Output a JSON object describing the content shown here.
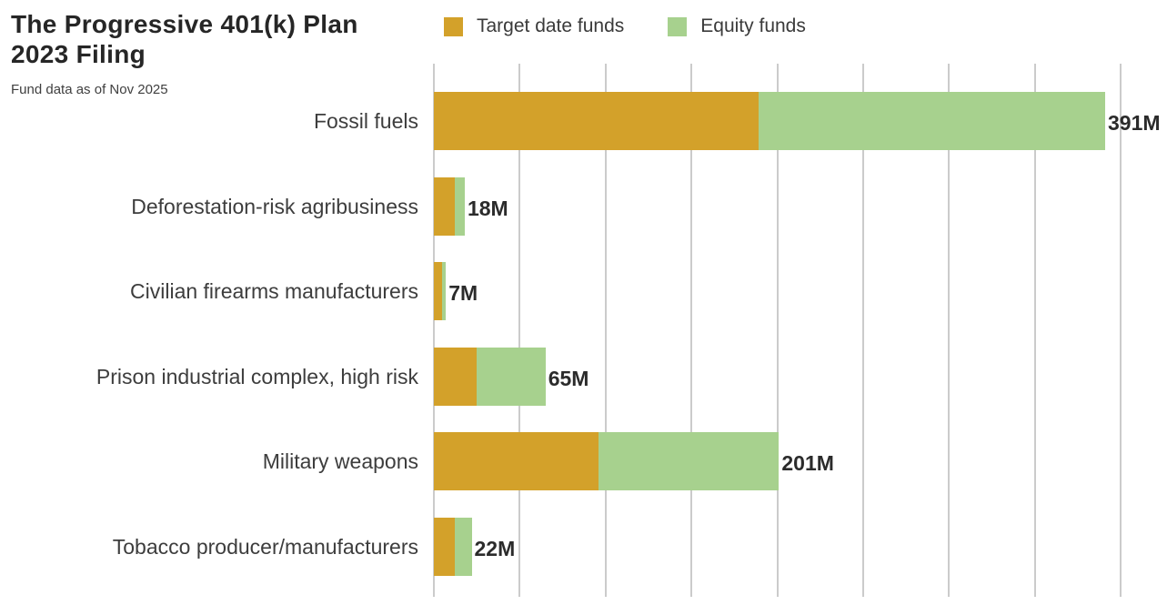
{
  "header": {
    "title_line1": "The Progressive 401(k) Plan",
    "title_line2": "2023 Filing",
    "subtitle": "Fund data as of Nov 2025"
  },
  "legend": {
    "items": [
      {
        "label": "Target date funds",
        "color": "#D3A12A"
      },
      {
        "label": "Equity funds",
        "color": "#A7D18E"
      }
    ]
  },
  "chart_data": {
    "type": "bar",
    "orientation": "horizontal",
    "stacked": true,
    "title": "The Progressive 401(k) Plan 2023 Filing",
    "subtitle": "Fund data as of Nov 2025",
    "categories": [
      "Fossil fuels",
      "Deforestation-risk agribusiness",
      "Civilian firearms manufacturers",
      "Prison industrial complex, high risk",
      "Military weapons",
      "Tobacco producer/manufacturers"
    ],
    "series": [
      {
        "name": "Target date funds",
        "color": "#D3A12A",
        "values": [
          189,
          12,
          5,
          25,
          96,
          12
        ]
      },
      {
        "name": "Equity funds",
        "color": "#A7D18E",
        "values": [
          202,
          6,
          2,
          40,
          105,
          10
        ]
      }
    ],
    "totals": [
      391,
      18,
      7,
      65,
      201,
      22
    ],
    "total_labels": [
      "391M",
      "18M",
      "7M",
      "65M",
      "201M",
      "22M"
    ],
    "unit": "M",
    "xlim": [
      0,
      400
    ],
    "grid_step": 50,
    "grid": true,
    "legend_position": "top",
    "grid_color": "#cbcbcb"
  }
}
